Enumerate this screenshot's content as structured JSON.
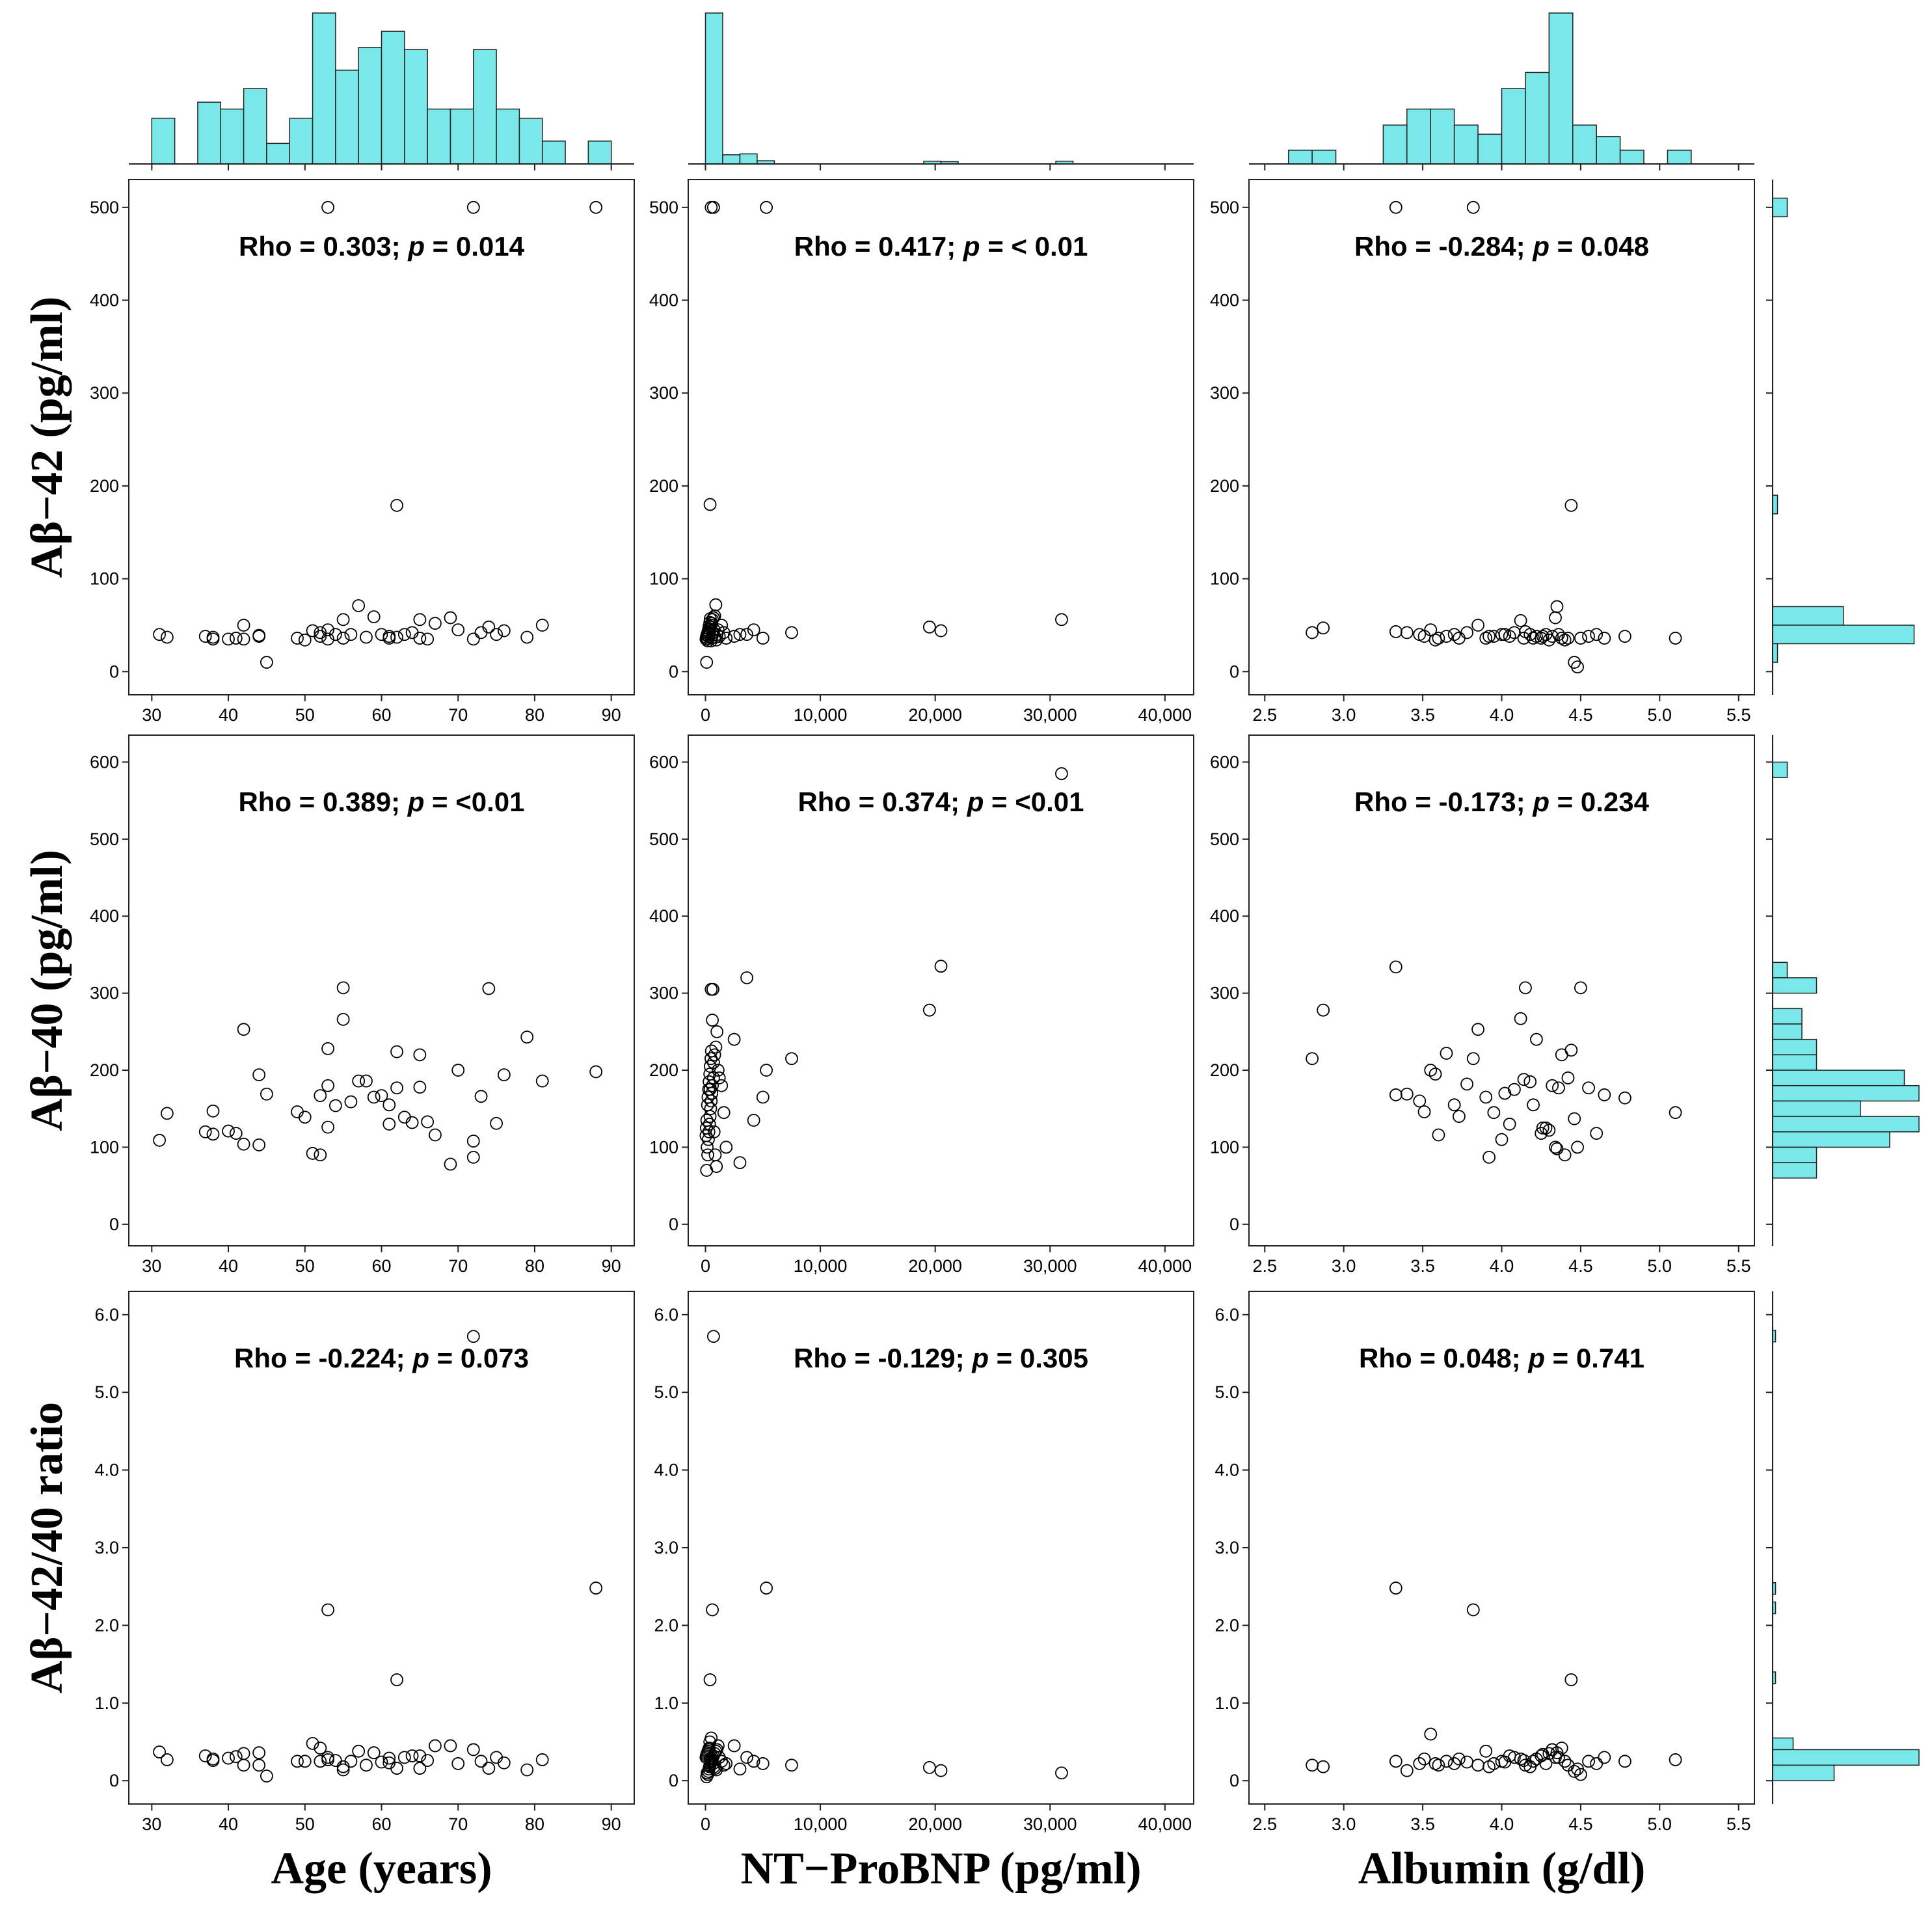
{
  "chart_data": {
    "type": "scatter",
    "colors": {
      "histogram_fill": "#7ae8e8",
      "marker_stroke": "#000000"
    },
    "x_variables": [
      {
        "label": "Age (years)",
        "xlim": [
          27,
          93
        ],
        "ticks": [
          30,
          40,
          50,
          60,
          70,
          80,
          90
        ],
        "tick_labels": [
          "30",
          "40",
          "50",
          "60",
          "70",
          "80",
          "90"
        ]
      },
      {
        "label": "NT−ProBNP (pg/ml)",
        "xlim": [
          -1500,
          42500
        ],
        "ticks": [
          0,
          10000,
          20000,
          30000,
          40000
        ],
        "tick_labels": [
          "0",
          "10,000",
          "20,000",
          "30,000",
          "40,000"
        ]
      },
      {
        "label": "Albumin (g/dl)",
        "xlim": [
          2.4,
          5.6
        ],
        "ticks": [
          2.5,
          3.0,
          3.5,
          4.0,
          4.5,
          5.0,
          5.5
        ],
        "tick_labels": [
          "2.5",
          "3.0",
          "3.5",
          "4.0",
          "4.5",
          "5.0",
          "5.5"
        ]
      }
    ],
    "y_variables": [
      {
        "label": "Aβ−42 (pg/ml)",
        "ylim": [
          -25,
          530
        ],
        "ticks": [
          0,
          100,
          200,
          300,
          400,
          500
        ],
        "tick_labels": [
          "0",
          "100",
          "200",
          "300",
          "400",
          "500"
        ]
      },
      {
        "label": "Aβ−40 (pg/ml)",
        "ylim": [
          -28,
          635
        ],
        "ticks": [
          0,
          100,
          200,
          300,
          400,
          500,
          600
        ],
        "tick_labels": [
          "0",
          "100",
          "200",
          "300",
          "400",
          "500",
          "600"
        ]
      },
      {
        "label": "Aβ−42/40 ratio",
        "ylim": [
          -0.3,
          6.3
        ],
        "ticks": [
          0,
          1,
          2,
          3,
          4,
          5,
          6
        ],
        "tick_labels": [
          "0",
          "1.0",
          "2.0",
          "3.0",
          "4.0",
          "5.0",
          "6.0"
        ]
      }
    ],
    "annotations": [
      [
        {
          "stat": "Rho = 0.303; ",
          "p": "p",
          "value": " = 0.014"
        },
        {
          "stat": "Rho = 0.417; ",
          "p": "p",
          "value": " = < 0.01"
        },
        {
          "stat": "Rho = -0.284; ",
          "p": "p",
          "value": " = 0.048"
        }
      ],
      [
        {
          "stat": "Rho = 0.389; ",
          "p": "p",
          "value": " = <0.01"
        },
        {
          "stat": "Rho = 0.374; ",
          "p": "p",
          "value": " = <0.01"
        },
        {
          "stat": "Rho = -0.173; ",
          "p": "p",
          "value": " = 0.234"
        }
      ],
      [
        {
          "stat": "Rho = -0.224; ",
          "p": "p",
          "value": " = 0.073"
        },
        {
          "stat": "Rho = -0.129; ",
          "p": "p",
          "value": " = 0.305"
        },
        {
          "stat": "Rho = 0.048; ",
          "p": "p",
          "value": " = 0.741"
        }
      ]
    ],
    "top_histograms": [
      {
        "bins": [
          [
            30,
            33,
            1
          ],
          [
            36,
            39,
            1.35
          ],
          [
            39,
            42,
            1.2
          ],
          [
            42,
            45,
            1.65
          ],
          [
            45,
            48,
            0.45
          ],
          [
            48,
            51,
            1
          ],
          [
            51,
            54,
            3.3
          ],
          [
            54,
            57,
            2.05
          ],
          [
            57,
            60,
            2.55
          ],
          [
            60,
            63,
            2.9
          ],
          [
            63,
            66,
            2.5
          ],
          [
            66,
            69,
            1.2
          ],
          [
            69,
            72,
            1.2
          ],
          [
            72,
            75,
            2.5
          ],
          [
            75,
            78,
            1.2
          ],
          [
            78,
            81,
            1
          ],
          [
            81,
            84,
            0.5
          ],
          [
            87,
            90,
            0.5
          ]
        ],
        "max": 3.3
      },
      {
        "bins": [
          [
            0,
            1500,
            3.3
          ],
          [
            1500,
            3000,
            0.2
          ],
          [
            3000,
            4500,
            0.22
          ],
          [
            4500,
            6000,
            0.07
          ],
          [
            19000,
            20500,
            0.06
          ],
          [
            20500,
            22000,
            0.05
          ],
          [
            30500,
            32000,
            0.06
          ]
        ],
        "max": 3.3
      },
      {
        "bins": [
          [
            2.65,
            2.8,
            0.3
          ],
          [
            2.8,
            2.95,
            0.3
          ],
          [
            3.25,
            3.4,
            0.85
          ],
          [
            3.4,
            3.55,
            1.2
          ],
          [
            3.55,
            3.7,
            1.2
          ],
          [
            3.7,
            3.85,
            0.85
          ],
          [
            3.85,
            4.0,
            0.65
          ],
          [
            4.0,
            4.15,
            1.65
          ],
          [
            4.15,
            4.3,
            2.0
          ],
          [
            4.3,
            4.45,
            3.3
          ],
          [
            4.45,
            4.6,
            0.85
          ],
          [
            4.6,
            4.75,
            0.6
          ],
          [
            4.75,
            4.9,
            0.3
          ],
          [
            5.05,
            5.2,
            0.3
          ]
        ],
        "max": 3.3
      }
    ],
    "right_histograms": [
      {
        "bins": [
          [
            490,
            510,
            0.06
          ],
          [
            170,
            190,
            0.02
          ],
          [
            50,
            70,
            0.29
          ],
          [
            30,
            50,
            0.58
          ],
          [
            10,
            30,
            0.02
          ]
        ],
        "max": 0.6
      },
      {
        "bins": [
          [
            580,
            600,
            0.1
          ],
          [
            320,
            340,
            0.1
          ],
          [
            300,
            320,
            0.3
          ],
          [
            260,
            280,
            0.2
          ],
          [
            240,
            260,
            0.2
          ],
          [
            220,
            240,
            0.3
          ],
          [
            200,
            220,
            0.3
          ],
          [
            180,
            200,
            0.9
          ],
          [
            160,
            180,
            1.0
          ],
          [
            140,
            160,
            0.6
          ],
          [
            120,
            140,
            1.0
          ],
          [
            100,
            120,
            0.8
          ],
          [
            80,
            100,
            0.3
          ],
          [
            60,
            80,
            0.3
          ]
        ],
        "max": 1.0
      },
      {
        "bins": [
          [
            5.65,
            5.8,
            0.02
          ],
          [
            2.4,
            2.55,
            0.02
          ],
          [
            2.15,
            2.3,
            0.02
          ],
          [
            1.25,
            1.4,
            0.02
          ],
          [
            0.4,
            0.55,
            0.14
          ],
          [
            0.2,
            0.4,
            1.0
          ],
          [
            0.0,
            0.2,
            0.42
          ]
        ],
        "max": 1.0
      }
    ],
    "series": [
      {
        "name": "Age (years)",
        "x": [
          53,
          72,
          88,
          62,
          31,
          32,
          37,
          38,
          38,
          40,
          41,
          42,
          42,
          44,
          44,
          45,
          49,
          50,
          51,
          52,
          52,
          53,
          53,
          54,
          55,
          55,
          56,
          57,
          58,
          59,
          60,
          61,
          61,
          62,
          63,
          64,
          65,
          65,
          66,
          67,
          69,
          70,
          72,
          73,
          74,
          75,
          76,
          79,
          81
        ],
        "abeta42": [
          500,
          500,
          500,
          179,
          40,
          37,
          38,
          37,
          35,
          35,
          36,
          50,
          35,
          39,
          38,
          10,
          36,
          34,
          44,
          42,
          38,
          45,
          35,
          40,
          56,
          36,
          40,
          71,
          37,
          59,
          40,
          38,
          36,
          37,
          40,
          42,
          36,
          56,
          35,
          52,
          58,
          45,
          35,
          42,
          48,
          40,
          44,
          37,
          50
        ],
        "abeta40": [
          180,
          108,
          198,
          177,
          109,
          144,
          120,
          147,
          117,
          121,
          118,
          253,
          104,
          194,
          103,
          169,
          146,
          139,
          92,
          167,
          90,
          228,
          126,
          154,
          307,
          266,
          159,
          186,
          186,
          165,
          167,
          130,
          155,
          224,
          139,
          132,
          220,
          178,
          133,
          116,
          78,
          200,
          87,
          166,
          306,
          131,
          194,
          243,
          186
        ],
        "ratio": [
          2.2,
          5.72,
          2.48,
          1.3,
          0.37,
          0.27,
          0.32,
          0.28,
          0.26,
          0.29,
          0.31,
          0.35,
          0.2,
          0.36,
          0.2,
          0.06,
          0.25,
          0.25,
          0.48,
          0.25,
          0.42,
          0.3,
          0.27,
          0.26,
          0.18,
          0.14,
          0.25,
          0.38,
          0.2,
          0.36,
          0.24,
          0.29,
          0.23,
          0.16,
          0.3,
          0.32,
          0.16,
          0.32,
          0.26,
          0.45,
          0.45,
          0.22,
          0.4,
          0.25,
          0.16,
          0.3,
          0.23,
          0.14,
          0.27
        ]
      },
      {
        "name": "NT−ProBNP (pg/ml)",
        "x": [
          500,
          700,
          5300,
          400,
          100,
          200,
          150,
          250,
          300,
          350,
          400,
          450,
          500,
          550,
          600,
          700,
          800,
          900,
          1000,
          1100,
          1200,
          1400,
          1600,
          1800,
          2500,
          3000,
          3600,
          4200,
          5000,
          7500,
          19500,
          20500,
          31000,
          50,
          80,
          120,
          180,
          220,
          280,
          320,
          380,
          420,
          480,
          520,
          600,
          650,
          750,
          850,
          950
        ],
        "abeta42": [
          500,
          500,
          500,
          180,
          10,
          33,
          35,
          38,
          40,
          42,
          45,
          48,
          50,
          52,
          56,
          58,
          60,
          72,
          40,
          45,
          38,
          50,
          42,
          36,
          38,
          40,
          40,
          45,
          36,
          42,
          48,
          44,
          56,
          35,
          37,
          39,
          41,
          43,
          46,
          49,
          53,
          57,
          33,
          36,
          39,
          42,
          45,
          37,
          34
        ],
        "abeta40": [
          305,
          210,
          200,
          175,
          70,
          90,
          100,
          110,
          120,
          130,
          140,
          150,
          160,
          170,
          180,
          190,
          220,
          230,
          250,
          200,
          190,
          180,
          145,
          100,
          240,
          80,
          320,
          135,
          165,
          215,
          278,
          335,
          585,
          115,
          125,
          135,
          155,
          165,
          175,
          185,
          195,
          205,
          215,
          225,
          265,
          305,
          120,
          90,
          75
        ],
        "ratio": [
          0.55,
          5.72,
          2.48,
          1.3,
          0.05,
          0.08,
          0.1,
          0.12,
          0.15,
          0.18,
          0.2,
          0.22,
          0.25,
          0.28,
          0.3,
          0.32,
          0.35,
          0.38,
          0.4,
          0.45,
          0.3,
          0.25,
          0.2,
          0.22,
          0.45,
          0.15,
          0.3,
          0.25,
          0.22,
          0.2,
          0.17,
          0.13,
          0.1,
          0.3,
          0.32,
          0.34,
          0.36,
          0.38,
          0.4,
          0.42,
          0.5,
          0.28,
          0.26,
          0.24,
          2.2,
          0.22,
          0.18,
          0.16,
          0.14
        ]
      },
      {
        "name": "Albumin (g/dl)",
        "x": [
          3.33,
          3.82,
          2.8,
          2.87,
          3.33,
          3.48,
          3.51,
          3.55,
          3.6,
          3.65,
          3.7,
          3.73,
          3.78,
          3.85,
          3.9,
          3.95,
          4.0,
          4.05,
          4.08,
          4.12,
          4.15,
          4.18,
          4.2,
          4.22,
          4.25,
          4.28,
          4.3,
          4.32,
          4.34,
          4.35,
          4.38,
          4.4,
          4.44,
          4.46,
          4.5,
          4.55,
          4.6,
          4.65,
          4.78,
          5.1,
          3.4,
          3.58,
          3.92,
          4.02,
          4.14,
          4.26,
          4.36,
          4.42,
          4.48
        ],
        "abeta42": [
          500,
          500,
          42,
          47,
          43,
          40,
          38,
          45,
          36,
          38,
          40,
          36,
          42,
          50,
          36,
          38,
          40,
          38,
          42,
          55,
          43,
          40,
          36,
          38,
          36,
          40,
          34,
          38,
          58,
          70,
          36,
          34,
          179,
          10,
          36,
          38,
          40,
          36,
          38,
          36,
          42,
          34,
          38,
          40,
          36,
          38,
          40,
          36,
          5
        ],
        "abeta40": [
          334,
          215,
          215,
          278,
          168,
          160,
          146,
          200,
          116,
          222,
          155,
          140,
          182,
          253,
          165,
          145,
          110,
          130,
          175,
          267,
          307,
          185,
          155,
          240,
          118,
          125,
          122,
          180,
          100,
          98,
          220,
          90,
          226,
          137,
          307,
          177,
          118,
          168,
          164,
          145,
          169,
          195,
          87,
          170,
          188,
          125,
          177,
          190,
          100
        ],
        "ratio": [
          2.48,
          2.2,
          0.2,
          0.18,
          0.25,
          0.22,
          0.28,
          0.6,
          0.2,
          0.25,
          0.22,
          0.28,
          0.24,
          0.2,
          0.38,
          0.22,
          0.25,
          0.32,
          0.3,
          0.28,
          0.2,
          0.18,
          0.25,
          0.28,
          0.32,
          0.22,
          0.35,
          0.4,
          0.3,
          0.36,
          0.42,
          0.25,
          1.3,
          0.12,
          0.08,
          0.25,
          0.22,
          0.3,
          0.25,
          0.27,
          0.13,
          0.22,
          0.18,
          0.24,
          0.26,
          0.34,
          0.3,
          0.2,
          0.15
        ]
      }
    ]
  }
}
